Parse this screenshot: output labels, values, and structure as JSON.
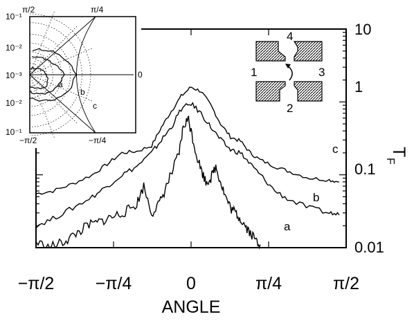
{
  "chart_data": [
    {
      "type": "line",
      "title": "",
      "xlabel": "ANGLE",
      "ylabel": "T",
      "ylabel_subscript": "F",
      "y_scale": "log",
      "xlim": [
        -1.5708,
        1.5708
      ],
      "ylim": [
        0.01,
        10
      ],
      "x_tick_labels": [
        "−π/2",
        "−π/4",
        "0",
        "π/4",
        "π/2"
      ],
      "y_tick_labels": [
        "10",
        "1",
        "0.1",
        "0.01"
      ],
      "grid": false,
      "series": [
        {
          "name": "c",
          "x": [
            -1.57,
            -1.4,
            -1.2,
            -1.0,
            -0.85,
            -0.7,
            -0.55,
            -0.4,
            -0.3,
            -0.2,
            -0.1,
            0.0,
            0.1,
            0.2,
            0.3,
            0.4,
            0.5,
            0.6,
            0.7,
            0.85,
            1.0,
            1.2,
            1.4,
            1.5
          ],
          "y": [
            0.055,
            0.06,
            0.075,
            0.1,
            0.14,
            0.2,
            0.21,
            0.25,
            0.45,
            0.75,
            1.2,
            1.6,
            1.4,
            0.9,
            0.5,
            0.33,
            0.29,
            0.2,
            0.16,
            0.13,
            0.11,
            0.09,
            0.085,
            0.08
          ]
        },
        {
          "name": "b",
          "x": [
            -1.57,
            -1.4,
            -1.2,
            -1.0,
            -0.85,
            -0.7,
            -0.55,
            -0.4,
            -0.3,
            -0.2,
            -0.1,
            0.0,
            0.1,
            0.2,
            0.3,
            0.4,
            0.5,
            0.6,
            0.7,
            0.85,
            1.0,
            1.2,
            1.4,
            1.5
          ],
          "y": [
            0.02,
            0.025,
            0.035,
            0.05,
            0.07,
            0.1,
            0.13,
            0.2,
            0.3,
            0.45,
            0.8,
            0.95,
            0.7,
            0.45,
            0.3,
            0.22,
            0.2,
            0.14,
            0.1,
            0.06,
            0.045,
            0.035,
            0.03,
            0.028
          ]
        },
        {
          "name": "a",
          "x": [
            -1.57,
            -1.45,
            -1.35,
            -1.25,
            -1.15,
            -1.05,
            -0.95,
            -0.85,
            -0.75,
            -0.65,
            -0.55,
            -0.48,
            -0.4,
            -0.32,
            -0.25,
            -0.18,
            -0.12,
            -0.08,
            -0.03,
            0.0,
            0.05,
            0.1,
            0.15,
            0.2,
            0.25,
            0.3,
            0.35,
            0.4,
            0.45,
            0.5,
            0.55,
            0.6,
            0.65,
            0.7
          ],
          "y": [
            0.012,
            0.01,
            0.011,
            0.013,
            0.016,
            0.02,
            0.022,
            0.025,
            0.028,
            0.032,
            0.04,
            0.07,
            0.03,
            0.04,
            0.07,
            0.12,
            0.2,
            0.45,
            0.6,
            0.4,
            0.2,
            0.12,
            0.08,
            0.09,
            0.13,
            0.08,
            0.05,
            0.035,
            0.03,
            0.025,
            0.02,
            0.016,
            0.013,
            0.011
          ]
        }
      ]
    },
    {
      "type": "polar",
      "title": "",
      "r_scale": "log",
      "r_tick_labels": [
        "10⁻¹",
        "10⁻²",
        "10⁻³",
        "10⁻²",
        "10⁻¹"
      ],
      "angle_labels_top": [
        "π/2",
        "π/4"
      ],
      "angle_labels_bottom": [
        "−π/2",
        "−π/4"
      ],
      "angle_label_right": "0",
      "curve_labels": [
        "a",
        "b",
        "c"
      ],
      "series": [
        {
          "name": "a",
          "theta": [
            -1.57,
            -1.0,
            -0.5,
            0.0,
            0.5,
            1.0,
            1.57
          ],
          "r": [
            0.002,
            0.003,
            0.004,
            0.003,
            0.002,
            0.0015,
            0.0012
          ]
        },
        {
          "name": "b",
          "theta": [
            -1.57,
            -1.0,
            -0.5,
            0.0,
            0.5,
            1.0,
            1.57
          ],
          "r": [
            0.003,
            0.005,
            0.008,
            0.012,
            0.006,
            0.004,
            0.003
          ]
        },
        {
          "name": "c",
          "theta": [
            -1.57,
            -1.0,
            -0.5,
            0.0,
            0.5,
            1.0,
            1.57
          ],
          "r": [
            0.005,
            0.009,
            0.02,
            0.03,
            0.015,
            0.008,
            0.005
          ]
        }
      ]
    }
  ],
  "device_inset": {
    "port_labels": [
      "4",
      "1",
      "3",
      "2"
    ]
  }
}
